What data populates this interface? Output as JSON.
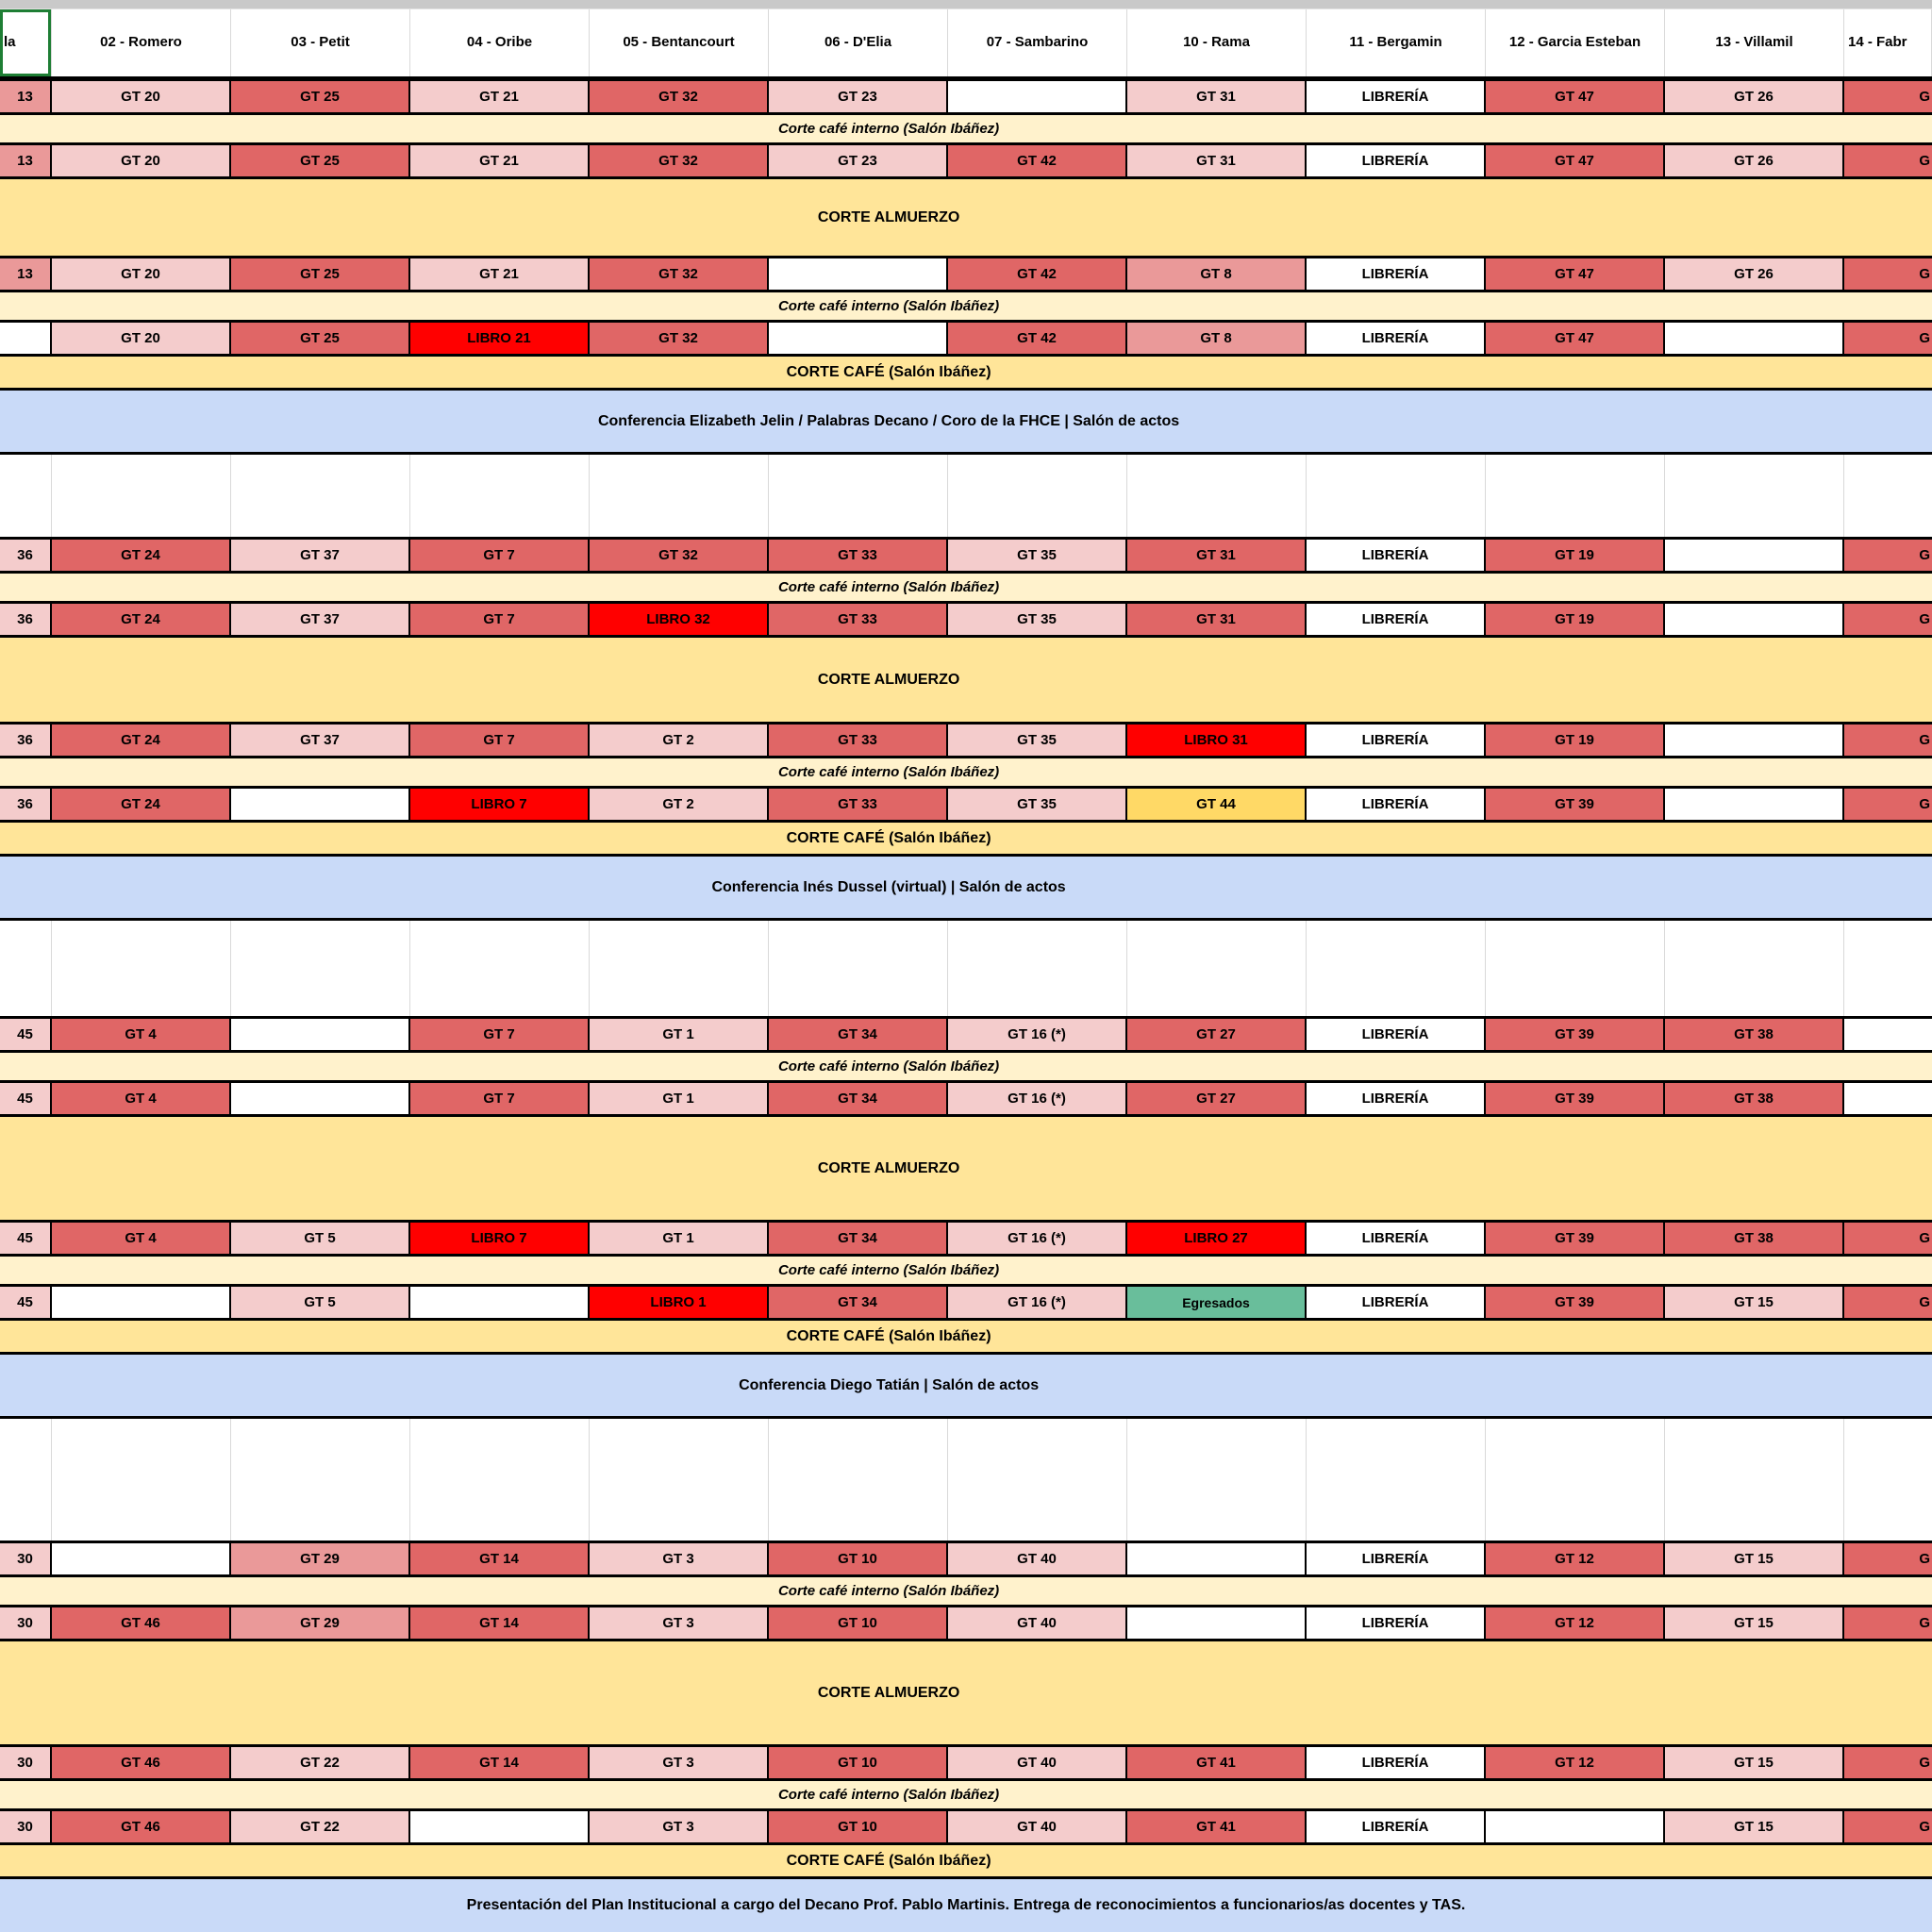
{
  "palette": {
    "pale": "#F4CCCC",
    "mid": "#EA9999",
    "red": "#E06666",
    "libro": "#FF0000",
    "creme": "#FFF2CC",
    "yellow": "#FFE599",
    "gold": "#FFD966",
    "blue": "#C9DAF8",
    "teal": "#69BE9B",
    "white": "#FFFFFF",
    "border": "#000000",
    "grid": "#D9D9D9",
    "selection": "#1E7E34",
    "chrome": "#C9C9C9"
  },
  "header": {
    "left_fragment": "la",
    "columns": [
      "02 - Romero",
      "03 - Petit",
      "04 - Oribe",
      "05 - Bentancourt",
      "06 - D'Elia",
      "07 - Sambarino",
      "10 - Rama",
      "11 - Bergamin",
      "12 - Garcia Esteban",
      "13 - Villamil"
    ],
    "right_fragment": "14 - Fabr"
  },
  "breaks": {
    "interno": "Corte café interno (Salón Ibáñez)",
    "almuerzo": "CORTE ALMUERZO",
    "cafe": "CORTE CAFÉ (Salón Ibáñez)"
  },
  "right_overflow_glyph": "G",
  "days": [
    {
      "conference": "Conferencia Elizabeth Jelin / Palabras Decano / Coro de la FHCE  |  Salón de actos",
      "gt_rows": [
        {
          "left": {
            "t": "13",
            "s": "mid"
          },
          "cells": [
            {
              "t": "GT 20",
              "s": "pale"
            },
            {
              "t": "GT 25",
              "s": "red"
            },
            {
              "t": "GT 21",
              "s": "pale"
            },
            {
              "t": "GT 32",
              "s": "red"
            },
            {
              "t": "GT 23",
              "s": "pale"
            },
            {
              "t": "",
              "s": "white"
            },
            {
              "t": "GT 31",
              "s": "pale"
            },
            {
              "t": "LIBRERÍA",
              "s": "white"
            },
            {
              "t": "GT 47",
              "s": "red"
            },
            {
              "t": "GT 26",
              "s": "pale"
            }
          ],
          "right": {
            "t": "G",
            "s": "red"
          }
        },
        {
          "left": {
            "t": "13",
            "s": "mid"
          },
          "cells": [
            {
              "t": "GT 20",
              "s": "pale"
            },
            {
              "t": "GT 25",
              "s": "red"
            },
            {
              "t": "GT 21",
              "s": "pale"
            },
            {
              "t": "GT 32",
              "s": "red"
            },
            {
              "t": "GT 23",
              "s": "pale"
            },
            {
              "t": "GT 42",
              "s": "red"
            },
            {
              "t": "GT 31",
              "s": "pale"
            },
            {
              "t": "LIBRERÍA",
              "s": "white"
            },
            {
              "t": "GT 47",
              "s": "red"
            },
            {
              "t": "GT 26",
              "s": "pale"
            }
          ],
          "right": {
            "t": "G",
            "s": "red"
          }
        },
        {
          "left": {
            "t": "13",
            "s": "mid"
          },
          "cells": [
            {
              "t": "GT 20",
              "s": "pale"
            },
            {
              "t": "GT 25",
              "s": "red"
            },
            {
              "t": "GT 21",
              "s": "pale"
            },
            {
              "t": "GT 32",
              "s": "red"
            },
            {
              "t": "",
              "s": "white"
            },
            {
              "t": "GT 42",
              "s": "red"
            },
            {
              "t": "GT 8",
              "s": "mid"
            },
            {
              "t": "LIBRERÍA",
              "s": "white"
            },
            {
              "t": "GT 47",
              "s": "red"
            },
            {
              "t": "GT 26",
              "s": "pale"
            }
          ],
          "right": {
            "t": "G",
            "s": "red"
          }
        },
        {
          "left": {
            "t": "",
            "s": "white"
          },
          "cells": [
            {
              "t": "GT 20",
              "s": "pale"
            },
            {
              "t": "GT 25",
              "s": "red"
            },
            {
              "t": "LIBRO 21",
              "s": "libro"
            },
            {
              "t": "GT 32",
              "s": "red"
            },
            {
              "t": "",
              "s": "white"
            },
            {
              "t": "GT 42",
              "s": "red"
            },
            {
              "t": "GT 8",
              "s": "mid"
            },
            {
              "t": "LIBRERÍA",
              "s": "white"
            },
            {
              "t": "GT 47",
              "s": "red"
            },
            {
              "t": "",
              "s": "white"
            }
          ],
          "right": {
            "t": "G",
            "s": "red"
          }
        }
      ]
    },
    {
      "conference": "Conferencia Inés Dussel (virtual)  |  Salón de actos",
      "gt_rows": [
        {
          "left": {
            "t": "36",
            "s": "pale"
          },
          "cells": [
            {
              "t": "GT 24",
              "s": "red"
            },
            {
              "t": "GT 37",
              "s": "pale"
            },
            {
              "t": "GT 7",
              "s": "red"
            },
            {
              "t": "GT 32",
              "s": "red"
            },
            {
              "t": "GT 33",
              "s": "red"
            },
            {
              "t": "GT 35",
              "s": "pale"
            },
            {
              "t": "GT 31",
              "s": "red"
            },
            {
              "t": "LIBRERÍA",
              "s": "white"
            },
            {
              "t": "GT 19",
              "s": "red"
            },
            {
              "t": "",
              "s": "white"
            }
          ],
          "right": {
            "t": "G",
            "s": "red"
          }
        },
        {
          "left": {
            "t": "36",
            "s": "pale"
          },
          "cells": [
            {
              "t": "GT 24",
              "s": "red"
            },
            {
              "t": "GT 37",
              "s": "pale"
            },
            {
              "t": "GT 7",
              "s": "red"
            },
            {
              "t": "LIBRO 32",
              "s": "libro"
            },
            {
              "t": "GT 33",
              "s": "red"
            },
            {
              "t": "GT 35",
              "s": "pale"
            },
            {
              "t": "GT 31",
              "s": "red"
            },
            {
              "t": "LIBRERÍA",
              "s": "white"
            },
            {
              "t": "GT 19",
              "s": "red"
            },
            {
              "t": "",
              "s": "white"
            }
          ],
          "right": {
            "t": "G",
            "s": "red"
          }
        },
        {
          "left": {
            "t": "36",
            "s": "pale"
          },
          "cells": [
            {
              "t": "GT 24",
              "s": "red"
            },
            {
              "t": "GT 37",
              "s": "pale"
            },
            {
              "t": "GT 7",
              "s": "red"
            },
            {
              "t": "GT 2",
              "s": "pale"
            },
            {
              "t": "GT 33",
              "s": "red"
            },
            {
              "t": "GT 35",
              "s": "pale"
            },
            {
              "t": "LIBRO 31",
              "s": "libro"
            },
            {
              "t": "LIBRERÍA",
              "s": "white"
            },
            {
              "t": "GT 19",
              "s": "red"
            },
            {
              "t": "",
              "s": "white"
            }
          ],
          "right": {
            "t": "G",
            "s": "red"
          }
        },
        {
          "left": {
            "t": "36",
            "s": "pale"
          },
          "cells": [
            {
              "t": "GT 24",
              "s": "red"
            },
            {
              "t": "",
              "s": "white"
            },
            {
              "t": "LIBRO 7",
              "s": "libro"
            },
            {
              "t": "GT 2",
              "s": "pale"
            },
            {
              "t": "GT 33",
              "s": "red"
            },
            {
              "t": "GT 35",
              "s": "pale"
            },
            {
              "t": "GT 44",
              "s": "gold"
            },
            {
              "t": "LIBRERÍA",
              "s": "white"
            },
            {
              "t": "GT 39",
              "s": "red"
            },
            {
              "t": "",
              "s": "white"
            }
          ],
          "right": {
            "t": "G",
            "s": "red"
          }
        }
      ]
    },
    {
      "conference": "Conferencia Diego Tatián  |  Salón de actos",
      "gt_rows": [
        {
          "left": {
            "t": "45",
            "s": "pale"
          },
          "cells": [
            {
              "t": "GT 4",
              "s": "red"
            },
            {
              "t": "",
              "s": "white"
            },
            {
              "t": "GT 7",
              "s": "red"
            },
            {
              "t": "GT 1",
              "s": "pale"
            },
            {
              "t": "GT 34",
              "s": "red"
            },
            {
              "t": "GT 16 (*)",
              "s": "pale"
            },
            {
              "t": "GT 27",
              "s": "red"
            },
            {
              "t": "LIBRERÍA",
              "s": "white"
            },
            {
              "t": "GT 39",
              "s": "red"
            },
            {
              "t": "GT 38",
              "s": "red"
            }
          ],
          "right": {
            "t": "",
            "s": "white"
          }
        },
        {
          "left": {
            "t": "45",
            "s": "pale"
          },
          "cells": [
            {
              "t": "GT 4",
              "s": "red"
            },
            {
              "t": "",
              "s": "white"
            },
            {
              "t": "GT 7",
              "s": "red"
            },
            {
              "t": "GT 1",
              "s": "pale"
            },
            {
              "t": "GT 34",
              "s": "red"
            },
            {
              "t": "GT 16 (*)",
              "s": "pale"
            },
            {
              "t": "GT 27",
              "s": "red"
            },
            {
              "t": "LIBRERÍA",
              "s": "white"
            },
            {
              "t": "GT 39",
              "s": "red"
            },
            {
              "t": "GT 38",
              "s": "red"
            }
          ],
          "right": {
            "t": "",
            "s": "white"
          }
        },
        {
          "left": {
            "t": "45",
            "s": "pale"
          },
          "cells": [
            {
              "t": "GT 4",
              "s": "red"
            },
            {
              "t": "GT 5",
              "s": "pale"
            },
            {
              "t": "LIBRO 7",
              "s": "libro"
            },
            {
              "t": "GT 1",
              "s": "pale"
            },
            {
              "t": "GT 34",
              "s": "red"
            },
            {
              "t": "GT 16 (*)",
              "s": "pale"
            },
            {
              "t": "LIBRO 27",
              "s": "libro"
            },
            {
              "t": "LIBRERÍA",
              "s": "white"
            },
            {
              "t": "GT 39",
              "s": "red"
            },
            {
              "t": "GT 38",
              "s": "red"
            }
          ],
          "right": {
            "t": "G",
            "s": "red"
          }
        },
        {
          "left": {
            "t": "45",
            "s": "pale"
          },
          "cells": [
            {
              "t": "",
              "s": "white"
            },
            {
              "t": "GT 5",
              "s": "pale"
            },
            {
              "t": "",
              "s": "white"
            },
            {
              "t": "LIBRO 1",
              "s": "libro"
            },
            {
              "t": "GT 34",
              "s": "red"
            },
            {
              "t": "GT 16 (*)",
              "s": "pale"
            },
            {
              "t": "Egresados",
              "s": "teal"
            },
            {
              "t": "LIBRERÍA",
              "s": "white"
            },
            {
              "t": "GT 39",
              "s": "red"
            },
            {
              "t": "GT 15",
              "s": "pale"
            }
          ],
          "right": {
            "t": "G",
            "s": "red"
          }
        }
      ]
    },
    {
      "conference": "Presentación del Plan Institucional a cargo del Decano Prof. Pablo Martinis. Entrega de reconocimientos a funcionarios/as docentes y TAS.",
      "gt_rows": [
        {
          "left": {
            "t": "30",
            "s": "pale"
          },
          "cells": [
            {
              "t": "",
              "s": "white"
            },
            {
              "t": "GT 29",
              "s": "mid"
            },
            {
              "t": "GT 14",
              "s": "red"
            },
            {
              "t": "GT 3",
              "s": "pale"
            },
            {
              "t": "GT 10",
              "s": "red"
            },
            {
              "t": "GT 40",
              "s": "pale"
            },
            {
              "t": "",
              "s": "white"
            },
            {
              "t": "LIBRERÍA",
              "s": "white"
            },
            {
              "t": "GT 12",
              "s": "red"
            },
            {
              "t": "GT 15",
              "s": "pale"
            }
          ],
          "right": {
            "t": "G",
            "s": "red"
          }
        },
        {
          "left": {
            "t": "30",
            "s": "pale"
          },
          "cells": [
            {
              "t": "GT 46",
              "s": "red"
            },
            {
              "t": "GT 29",
              "s": "mid"
            },
            {
              "t": "GT 14",
              "s": "red"
            },
            {
              "t": "GT 3",
              "s": "pale"
            },
            {
              "t": "GT 10",
              "s": "red"
            },
            {
              "t": "GT 40",
              "s": "pale"
            },
            {
              "t": "",
              "s": "white"
            },
            {
              "t": "LIBRERÍA",
              "s": "white"
            },
            {
              "t": "GT 12",
              "s": "red"
            },
            {
              "t": "GT 15",
              "s": "pale"
            }
          ],
          "right": {
            "t": "G",
            "s": "red"
          }
        },
        {
          "left": {
            "t": "30",
            "s": "pale"
          },
          "cells": [
            {
              "t": "GT 46",
              "s": "red"
            },
            {
              "t": "GT 22",
              "s": "pale"
            },
            {
              "t": "GT 14",
              "s": "red"
            },
            {
              "t": "GT 3",
              "s": "pale"
            },
            {
              "t": "GT 10",
              "s": "red"
            },
            {
              "t": "GT 40",
              "s": "pale"
            },
            {
              "t": "GT 41",
              "s": "red"
            },
            {
              "t": "LIBRERÍA",
              "s": "white"
            },
            {
              "t": "GT 12",
              "s": "red"
            },
            {
              "t": "GT 15",
              "s": "pale"
            }
          ],
          "right": {
            "t": "G",
            "s": "red"
          }
        },
        {
          "left": {
            "t": "30",
            "s": "pale"
          },
          "cells": [
            {
              "t": "GT 46",
              "s": "red"
            },
            {
              "t": "GT 22",
              "s": "pale"
            },
            {
              "t": "",
              "s": "white"
            },
            {
              "t": "GT 3",
              "s": "pale"
            },
            {
              "t": "GT 10",
              "s": "red"
            },
            {
              "t": "GT 40",
              "s": "pale"
            },
            {
              "t": "GT 41",
              "s": "red"
            },
            {
              "t": "LIBRERÍA",
              "s": "white"
            },
            {
              "t": "",
              "s": "white"
            },
            {
              "t": "GT 15",
              "s": "pale"
            }
          ],
          "right": {
            "t": "G",
            "s": "red"
          }
        }
      ]
    }
  ]
}
